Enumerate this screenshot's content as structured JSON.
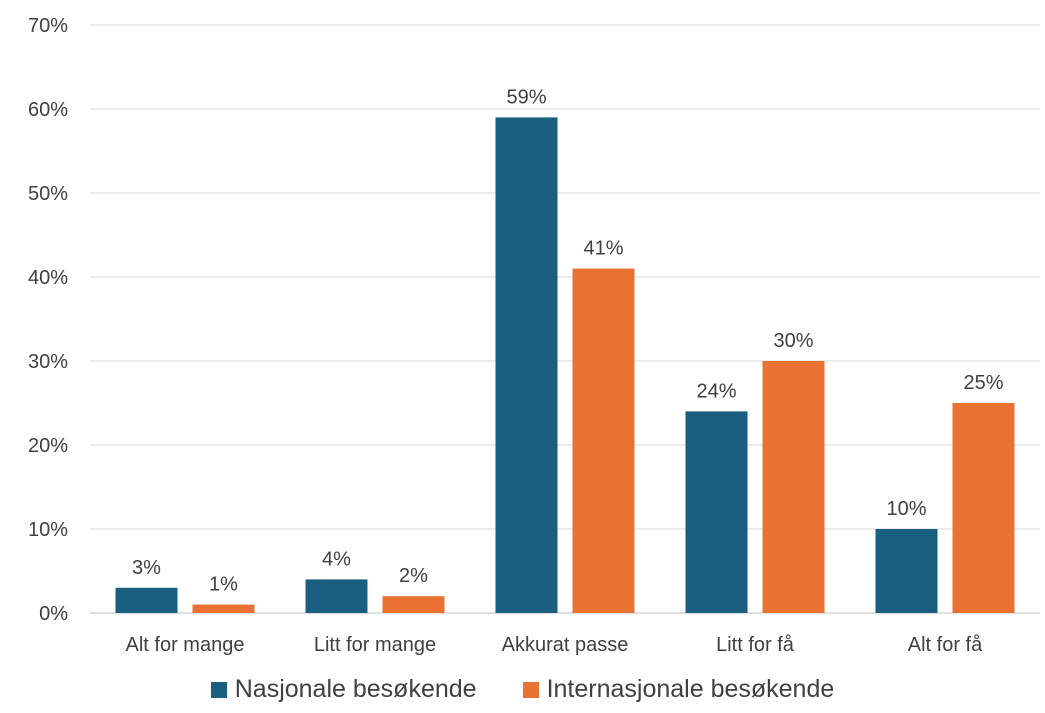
{
  "chart_data": {
    "type": "bar",
    "categories": [
      "Alt for mange",
      "Litt for mange",
      "Akkurat passe",
      "Litt for få",
      "Alt for få"
    ],
    "series": [
      {
        "name": "Nasjonale besøkende",
        "values": [
          3,
          4,
          59,
          24,
          10
        ],
        "labels": [
          "3%",
          "4%",
          "59%",
          "24%",
          "10%"
        ],
        "color": "#1a5e80"
      },
      {
        "name": "Internasjonale besøkende",
        "values": [
          1,
          2,
          41,
          30,
          25
        ],
        "labels": [
          "1%",
          "2%",
          "41%",
          "30%",
          "25%"
        ],
        "color": "#e97132"
      }
    ],
    "ylim": [
      0,
      70
    ],
    "yticks": [
      "0%",
      "10%",
      "20%",
      "30%",
      "40%",
      "50%",
      "60%",
      "70%"
    ],
    "grid": true,
    "legend_position": "bottom"
  }
}
